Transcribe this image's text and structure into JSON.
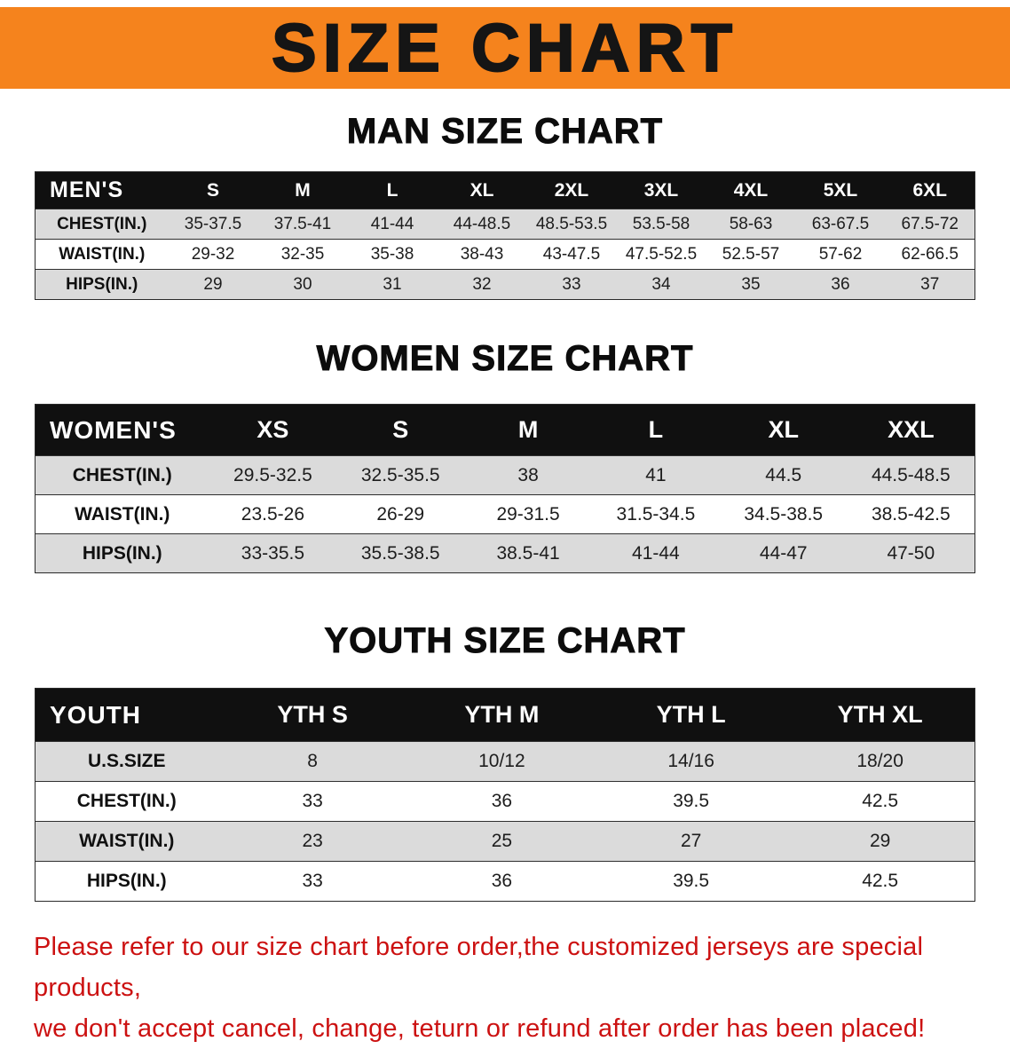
{
  "banner": {
    "title": "SIZE CHART"
  },
  "colors": {
    "banner-bg": "#F5831D",
    "header-bg": "#101010",
    "header-text": "#FFFFFF",
    "shaded-row": "#DBDBDB",
    "note-text": "#CC1111"
  },
  "sections": [
    {
      "title": "MAN SIZE CHART",
      "table": {
        "header": [
          "MEN'S",
          "S",
          "M",
          "L",
          "XL",
          "2XL",
          "3XL",
          "4XL",
          "5XL",
          "6XL"
        ],
        "rows": [
          [
            "CHEST(IN.)",
            "35-37.5",
            "37.5-41",
            "41-44",
            "44-48.5",
            "48.5-53.5",
            "53.5-58",
            "58-63",
            "63-67.5",
            "67.5-72"
          ],
          [
            "WAIST(IN.)",
            "29-32",
            "32-35",
            "35-38",
            "38-43",
            "43-47.5",
            "47.5-52.5",
            "52.5-57",
            "57-62",
            "62-66.5"
          ],
          [
            "HIPS(IN.)",
            "29",
            "30",
            "31",
            "32",
            "33",
            "34",
            "35",
            "36",
            "37"
          ]
        ]
      }
    },
    {
      "title": "WOMEN SIZE CHART",
      "table": {
        "header": [
          "WOMEN'S",
          "XS",
          "S",
          "M",
          "L",
          "XL",
          "XXL"
        ],
        "rows": [
          [
            "CHEST(IN.)",
            "29.5-32.5",
            "32.5-35.5",
            "38",
            "41",
            "44.5",
            "44.5-48.5"
          ],
          [
            "WAIST(IN.)",
            "23.5-26",
            "26-29",
            "29-31.5",
            "31.5-34.5",
            "34.5-38.5",
            "38.5-42.5"
          ],
          [
            "HIPS(IN.)",
            "33-35.5",
            "35.5-38.5",
            "38.5-41",
            "41-44",
            "44-47",
            "47-50"
          ]
        ]
      }
    },
    {
      "title": "YOUTH SIZE CHART",
      "table": {
        "header": [
          "YOUTH",
          "YTH S",
          "YTH M",
          "YTH L",
          "YTH XL"
        ],
        "rows": [
          [
            "U.S.SIZE",
            "8",
            "10/12",
            "14/16",
            "18/20"
          ],
          [
            "CHEST(IN.)",
            "33",
            "36",
            "39.5",
            "42.5"
          ],
          [
            "WAIST(IN.)",
            "23",
            "25",
            "27",
            "29"
          ],
          [
            "HIPS(IN.)",
            "33",
            "36",
            "39.5",
            "42.5"
          ]
        ]
      }
    }
  ],
  "footer": {
    "line1": "Please refer to our size chart before order,the customized jerseys are special products,",
    "line2": "we don't accept cancel, change, teturn or refund after order has been placed!"
  }
}
